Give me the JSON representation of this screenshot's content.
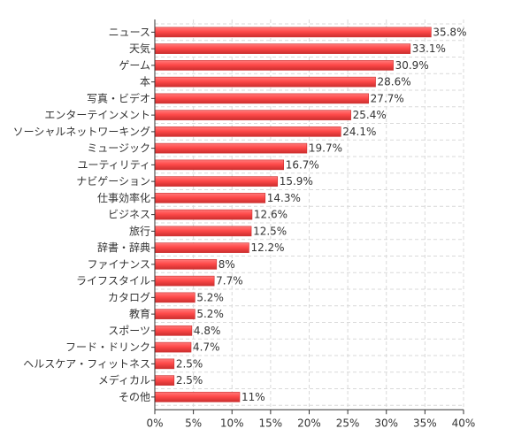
{
  "chart_data": {
    "type": "bar",
    "orientation": "horizontal",
    "title": "",
    "xlabel": "",
    "ylabel": "",
    "categories": [
      "ニュース",
      "天気",
      "ゲーム",
      "本",
      "写真・ビデオ",
      "エンターテインメント",
      "ソーシャルネットワーキング",
      "ミュージック",
      "ユーティリティ",
      "ナビゲーション",
      "仕事効率化",
      "ビジネス",
      "旅行",
      "辞書・辞典",
      "ファイナンス",
      "ライフスタイル",
      "カタログ",
      "教育",
      "スポーツ",
      "フード・ドリンク",
      "ヘルスケア・フィットネス",
      "メディカル",
      "その他"
    ],
    "values": [
      35.8,
      33.1,
      30.9,
      28.6,
      27.7,
      25.4,
      24.1,
      19.7,
      16.7,
      15.9,
      14.3,
      12.6,
      12.5,
      12.2,
      8,
      7.7,
      5.2,
      5.2,
      4.8,
      4.7,
      2.5,
      2.5,
      11
    ],
    "value_labels": [
      "35.8%",
      "33.1%",
      "30.9%",
      "28.6%",
      "27.7%",
      "25.4%",
      "24.1%",
      "19.7%",
      "16.7%",
      "15.9%",
      "14.3%",
      "12.6%",
      "12.5%",
      "12.2%",
      "8%",
      "7.7%",
      "5.2%",
      "5.2%",
      "4.8%",
      "4.7%",
      "2.5%",
      "2.5%",
      "11%"
    ],
    "xlim": [
      0,
      40
    ],
    "x_ticks": [
      0,
      5,
      10,
      15,
      20,
      25,
      30,
      35,
      40
    ],
    "x_tick_labels": [
      "0%",
      "5%",
      "10%",
      "15%",
      "20%",
      "25%",
      "30%",
      "35%",
      "40%"
    ],
    "grid": true,
    "legend": false,
    "colors": {
      "bar": "#ff4a4a",
      "bar_highlight": "#ff7a7a",
      "bar_edge": "#cc2e2e",
      "grid": "#d9d9d9",
      "axis": "#333333",
      "text": "#333333"
    }
  }
}
